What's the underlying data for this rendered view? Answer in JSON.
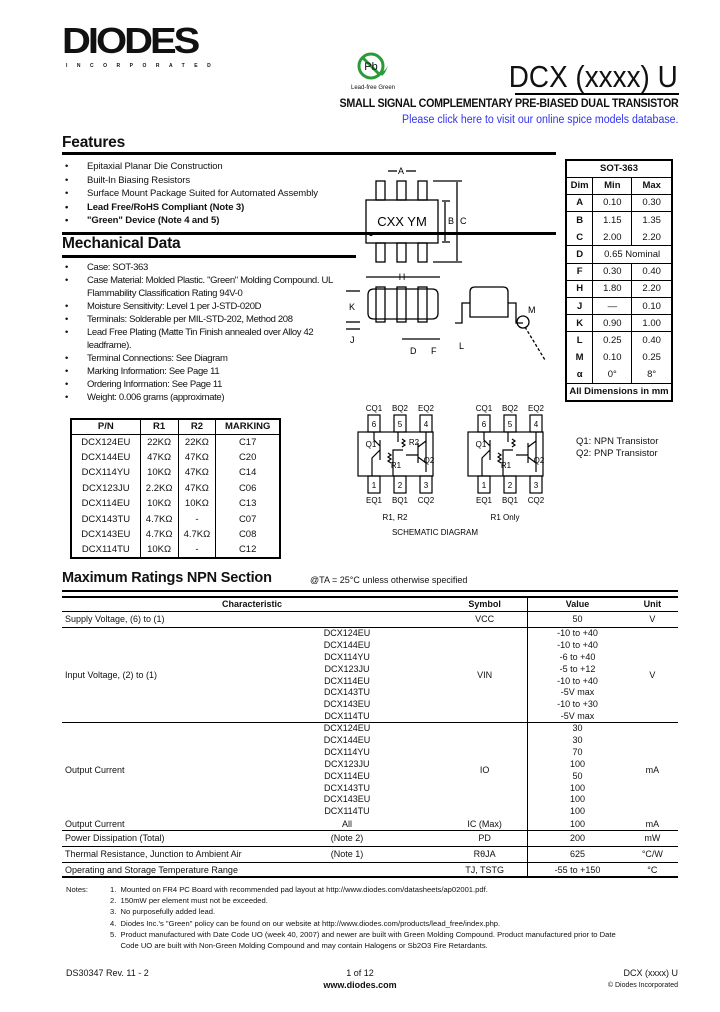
{
  "header": {
    "logo": "DIODES",
    "logo_sub": "INCORPORATED",
    "pb_badge": "Pb",
    "pb_label": "Lead-free Green",
    "title": "DCX (xxxx) U",
    "subtitle": "SMALL SIGNAL COMPLEMENTARY PRE-BIASED DUAL TRANSISTOR",
    "link": "Please click here to visit our online spice models database."
  },
  "features": {
    "heading": "Features",
    "items": [
      {
        "text": "Epitaxial Planar Die Construction",
        "bold": false
      },
      {
        "text": "Built-In Biasing Resistors",
        "bold": false
      },
      {
        "text": "Surface Mount Package Suited for Automated Assembly",
        "bold": false
      },
      {
        "text": "Lead Free/RoHS Compliant (Note 3)",
        "bold": true
      },
      {
        "text": "\"Green\" Device (Note 4 and 5)",
        "bold": true
      }
    ]
  },
  "mechanical": {
    "heading": "Mechanical Data",
    "items": [
      "Case: SOT-363",
      "Case Material: Molded Plastic. \"Green\" Molding Compound. UL Flammability Classification Rating 94V-0",
      "Moisture Sensitivity: Level 1 per J-STD-020D",
      "Terminals: Solderable per MIL-STD-202, Method 208",
      "Lead Free Plating (Matte Tin Finish annealed over Alloy 42 leadframe).",
      "Terminal Connections: See Diagram",
      "Marking Information: See Page 11",
      "Ordering Information: See Page 11",
      "Weight: 0.006 grams (approximate)"
    ]
  },
  "pn_table": {
    "headers": [
      "P/N",
      "R1",
      "R2",
      "MARKING"
    ],
    "rows": [
      [
        "DCX124EU",
        "22KΩ",
        "22KΩ",
        "C17"
      ],
      [
        "DCX144EU",
        "47KΩ",
        "47KΩ",
        "C20"
      ],
      [
        "DCX114YU",
        "10KΩ",
        "47KΩ",
        "C14"
      ],
      [
        "DCX123JU",
        "2.2KΩ",
        "47KΩ",
        "C06"
      ],
      [
        "DCX114EU",
        "10KΩ",
        "10KΩ",
        "C13"
      ],
      [
        "DCX143TU",
        "4.7KΩ",
        "-",
        "C07"
      ],
      [
        "DCX143EU",
        "4.7KΩ",
        "4.7KΩ",
        "C08"
      ],
      [
        "DCX114TU",
        "10KΩ",
        "-",
        "C12"
      ]
    ]
  },
  "package": {
    "marking": "CXX YM",
    "labels": {
      "a": "A",
      "b": "B",
      "c": "C",
      "h": "H",
      "k": "K",
      "j": "J",
      "d": "D",
      "f": "F",
      "m": "M",
      "l": "L"
    }
  },
  "sot_table": {
    "title": "SOT-363",
    "headers": [
      "Dim",
      "Min",
      "Max"
    ],
    "rows": [
      [
        "A",
        "0.10",
        "0.30"
      ],
      [
        "B",
        "1.15",
        "1.35"
      ],
      [
        "C",
        "2.00",
        "2.20"
      ],
      [
        "D",
        "0.65 Nominal"
      ],
      [
        "F",
        "0.30",
        "0.40"
      ],
      [
        "H",
        "1.80",
        "2.20"
      ],
      [
        "J",
        "—",
        "0.10"
      ],
      [
        "K",
        "0.90",
        "1.00"
      ],
      [
        "L",
        "0.25",
        "0.40"
      ],
      [
        "M",
        "0.10",
        "0.25"
      ],
      [
        "α",
        "0°",
        "8°"
      ]
    ],
    "footer": "All Dimensions in mm"
  },
  "schematic": {
    "top_pins": [
      "CQ1",
      "BQ2",
      "EQ2"
    ],
    "top_nums": [
      "6",
      "5",
      "4"
    ],
    "bottom_pins": [
      "EQ1",
      "BQ1",
      "CQ2"
    ],
    "bottom_nums": [
      "1",
      "2",
      "3"
    ],
    "left_caption": "R1, R2",
    "right_caption": "R1 Only",
    "title": "SCHEMATIC DIAGRAM",
    "q1": "Q1",
    "q2": "Q2",
    "r1": "R1",
    "r2": "R2",
    "legend": [
      "Q1: NPN Transistor",
      "Q2: PNP Transistor"
    ]
  },
  "ratings": {
    "heading": "Maximum Ratings NPN Section",
    "condition": "@TA = 25°C unless otherwise specified",
    "headers": [
      "Characteristic",
      "Symbol",
      "Value",
      "Unit"
    ],
    "parts": [
      "DCX124EU",
      "DCX144EU",
      "DCX114YU",
      "DCX123JU",
      "DCX114EU",
      "DCX143TU",
      "DCX143EU",
      "DCX114TU"
    ],
    "supply": {
      "label": "Supply Voltage, (6) to (1)",
      "symbol": "VCC",
      "value": "50",
      "unit": "V"
    },
    "input": {
      "label": "Input Voltage, (2) to (1)",
      "symbol": "VIN",
      "values": [
        "-10 to +40",
        "-10 to +40",
        "-6 to +40",
        "-5 to +12",
        "-10 to +40",
        "-5V max",
        "-10 to +30",
        "-5V max"
      ],
      "unit": "V"
    },
    "output": {
      "label": "Output Current",
      "symbol": "IO",
      "values": [
        "30",
        "30",
        "70",
        "100",
        "50",
        "100",
        "100",
        "100"
      ],
      "unit": "mA"
    },
    "output_all": {
      "label": "Output Current",
      "part": "All",
      "symbol": "IC (Max)",
      "value": "100",
      "unit": "mA"
    },
    "power": {
      "label": "Power Dissipation (Total)",
      "note": "(Note 2)",
      "symbol": "PD",
      "value": "200",
      "unit": "mW"
    },
    "thermal": {
      "label": "Thermal Resistance, Junction to Ambient Air",
      "note": "(Note 1)",
      "symbol": "RθJA",
      "value": "625",
      "unit": "°C/W"
    },
    "temp": {
      "label": "Operating and Storage Temperature Range",
      "symbol": "TJ, TSTG",
      "value": "-55 to +150",
      "unit": "°C"
    }
  },
  "notes": {
    "label": "Notes:",
    "items": [
      "1.  Mounted on FR4 PC Board with recommended pad layout at http://www.diodes.com/datasheets/ap02001.pdf.",
      "2.  150mW per element must not be exceeded.",
      "3.  No purposefully added lead.",
      "4.  Diodes Inc.'s \"Green\" policy can be found on our website at http://www.diodes.com/products/lead_free/index.php.",
      "5.  Product manufactured with Date Code UO (week 40, 2007) and newer are built with Green Molding Compound. Product manufactured prior to Date",
      "     Code UO are built with Non-Green Molding Compound and may contain Halogens or Sb2O3 Fire Retardants."
    ]
  },
  "footer": {
    "doc": "DS30347 Rev. 11 - 2",
    "page": "1 of 12",
    "url": "www.diodes.com",
    "part": "DCX (xxxx) U",
    "copyright": "© Diodes Incorporated"
  }
}
